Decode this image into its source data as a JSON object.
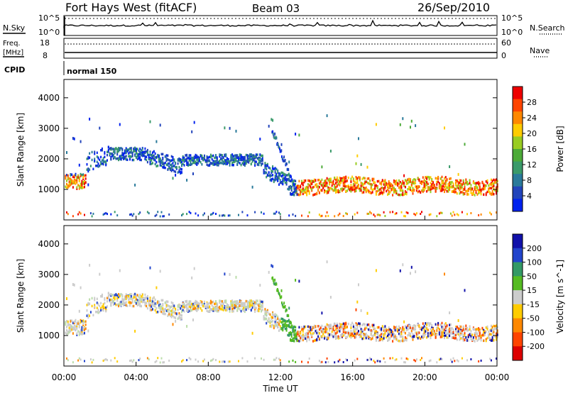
{
  "header": {
    "radar": "Fort Hays West (fitACF)",
    "beam": "Beam 03",
    "date": "26/Sep/2010"
  },
  "panels": {
    "nsky": {
      "label": "N.Sky",
      "tick_top": "10^5",
      "tick_bottom": "10^0"
    },
    "nsearch": {
      "label": "N.Search",
      "tick_top": "10^5",
      "tick_bottom": "10^0"
    },
    "freq": {
      "label_line1": "Freq.",
      "label_line2": "[MHz]",
      "tick_top": "18",
      "tick_bottom": "8"
    },
    "nave": {
      "label": "Nave",
      "tick_top": "60",
      "tick_bottom": "0"
    },
    "cpid": {
      "label": "CPID",
      "value": "normal 150"
    }
  },
  "chart_data": [
    {
      "type": "heatmap",
      "name": "power",
      "ylabel": "Slant Range [km]",
      "yticks": [
        "1000",
        "2000",
        "3000",
        "4000"
      ],
      "ylim": [
        0,
        4600
      ],
      "xlim_hours": [
        0,
        24
      ],
      "colorbar": {
        "label": "Power [dB]",
        "ticks": [
          "4",
          "8",
          "12",
          "16",
          "20",
          "24",
          "28"
        ],
        "colors": [
          "#0022ee",
          "#2244bb",
          "#2a7a9a",
          "#3a9a6a",
          "#4caa38",
          "#99cc22",
          "#ffcc00",
          "#ff8800",
          "#ff4400",
          "#ee0000"
        ]
      }
    },
    {
      "type": "heatmap",
      "name": "velocity",
      "ylabel": "Slant Range [km]",
      "yticks": [
        "1000",
        "2000",
        "3000",
        "4000"
      ],
      "ylim": [
        0,
        4600
      ],
      "xlim_hours": [
        0,
        24
      ],
      "colorbar": {
        "label": "Velocity [m s^-1]",
        "ticks": [
          "200",
          "100",
          "50",
          "15",
          "-15",
          "-50",
          "-100",
          "-200"
        ],
        "colors": [
          "#1111aa",
          "#2244cc",
          "#339966",
          "#55bb22",
          "#cccccc",
          "#ffcc00",
          "#ff8800",
          "#ff4400",
          "#dd0000"
        ]
      }
    }
  ],
  "xaxis": {
    "label": "Time UT",
    "ticks": [
      "00:00",
      "04:00",
      "08:00",
      "12:00",
      "16:00",
      "20:00",
      "00:00"
    ]
  }
}
